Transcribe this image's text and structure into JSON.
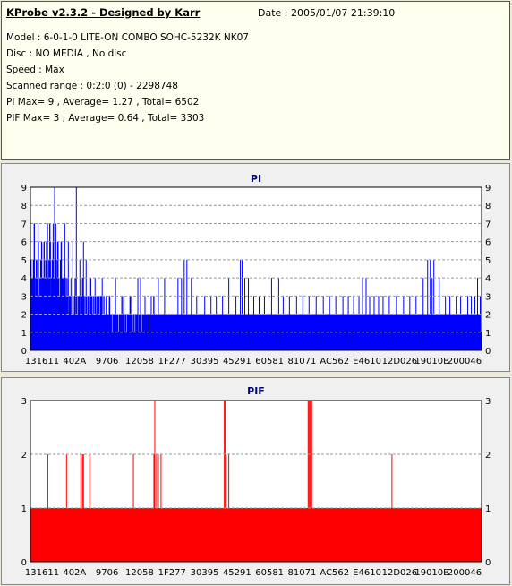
{
  "header": {
    "title": "KProbe v2.3.2 - Designed by Karr",
    "date": "Date : 2005/01/07 21:39:10",
    "lines": [
      "Model : 6-0-1-0 LITE-ON COMBO SOHC-5232K NK07",
      "Disc : NO MEDIA , No disc",
      "Speed : Max",
      "Scanned range : 0:2:0 (0) - 2298748",
      "PI Max= 9 , Average= 1.27 , Total= 6502",
      "PIF Max= 3 , Average= 0.64 , Total= 3303"
    ]
  },
  "colors": {
    "pi": "#0000ff",
    "pif": "#ff0000",
    "plot_bg": "#ffffff",
    "grid": "#999999"
  },
  "chart_data": [
    {
      "type": "bar",
      "title": "PI",
      "xlabel": "",
      "ylabel": "",
      "ylim": [
        0,
        9
      ],
      "y_ticks": [
        0,
        1,
        2,
        3,
        4,
        5,
        6,
        7,
        8,
        9
      ],
      "x_tick_labels": [
        "131611",
        "402A",
        "9706",
        "12058",
        "1F277",
        "30395",
        "45291",
        "60581",
        "81071",
        "AC562",
        "E4610",
        "12D026",
        "19010B",
        "200046"
      ],
      "grid": true,
      "values": [
        5,
        4,
        4,
        5,
        7,
        4,
        3,
        4,
        5,
        6,
        3,
        4,
        5,
        6,
        4,
        4,
        6,
        4,
        5,
        6,
        7,
        4,
        5,
        7,
        3,
        4,
        5,
        6,
        4,
        9,
        4,
        5,
        4,
        6,
        4,
        3,
        5,
        6,
        4,
        4,
        3,
        4,
        4,
        3,
        4,
        3,
        2,
        3,
        3,
        2,
        2,
        3,
        2,
        3,
        4,
        2,
        3,
        2,
        3,
        3,
        2,
        3,
        3,
        4,
        2,
        3,
        2,
        3,
        3,
        2,
        3,
        2,
        3,
        4,
        3,
        2,
        3,
        2,
        3,
        3,
        2,
        3,
        2,
        3,
        2,
        3,
        3,
        2,
        2,
        3,
        2,
        2,
        3,
        2,
        2,
        2,
        3,
        2,
        2,
        1,
        2,
        2,
        2,
        3,
        2,
        2,
        2,
        1,
        2,
        2,
        2,
        3,
        2,
        2,
        1,
        2,
        2,
        1,
        2,
        2,
        2,
        3,
        2,
        2,
        1,
        2,
        2,
        1,
        2,
        2,
        2,
        1,
        2,
        2,
        2,
        1,
        2,
        2,
        2,
        1,
        2,
        2,
        2,
        2,
        1,
        2,
        2,
        2,
        2,
        2,
        3,
        2,
        2,
        2,
        2,
        2,
        2,
        2,
        2,
        2,
        2,
        2,
        2,
        2,
        2,
        2,
        2,
        2,
        2,
        2,
        2,
        2,
        2,
        2,
        2,
        2,
        2,
        2,
        2,
        2,
        2,
        2,
        2,
        2,
        2,
        2,
        2,
        2,
        2,
        2,
        2,
        2,
        2,
        2,
        2,
        2,
        2,
        2,
        2,
        2,
        2,
        2,
        2,
        2,
        2,
        2,
        2,
        2,
        2,
        2,
        2,
        2,
        2,
        2,
        2,
        2,
        2,
        2,
        2,
        2,
        2,
        2,
        2,
        2,
        2,
        2,
        2,
        2,
        2,
        2,
        2,
        2,
        2,
        2,
        2,
        2,
        2,
        2,
        2,
        2,
        2,
        2,
        2,
        2,
        2,
        2,
        2,
        2,
        2,
        2,
        2,
        2,
        2,
        2,
        2,
        2,
        2,
        2,
        2,
        2,
        2,
        2,
        2,
        2,
        2,
        2,
        2,
        2,
        2,
        2,
        2,
        2,
        2,
        2,
        2,
        2,
        2,
        2,
        2,
        2,
        2,
        2,
        2,
        2,
        2,
        2,
        2,
        2,
        2,
        2,
        2,
        2,
        2,
        2,
        2,
        2,
        2,
        2,
        2,
        2,
        2,
        2,
        2,
        2,
        2,
        2,
        2,
        2,
        2,
        2,
        2,
        2,
        2,
        2,
        2,
        2,
        2,
        2,
        2,
        2,
        2,
        2,
        2,
        2,
        2,
        2,
        2,
        2,
        2,
        2,
        2,
        2,
        2,
        2,
        2,
        2,
        2,
        2,
        2,
        2,
        2,
        2,
        2,
        2,
        2,
        2,
        2,
        2,
        2,
        2,
        2,
        2,
        2,
        2,
        2,
        2,
        2,
        2,
        2,
        2,
        2,
        2,
        2,
        2,
        2,
        2,
        2,
        2,
        2,
        2,
        2,
        2,
        2,
        2,
        2,
        2,
        2,
        2,
        2,
        2,
        2,
        2,
        2,
        2,
        2,
        2,
        2,
        2,
        2,
        2,
        2,
        2,
        2,
        2,
        2,
        2,
        2,
        2,
        2,
        2,
        2,
        2,
        2,
        2,
        2,
        2,
        2,
        2,
        2,
        2,
        2,
        2,
        2,
        2,
        2,
        2,
        2,
        2,
        2,
        2,
        2,
        2,
        2,
        2,
        2,
        2,
        2,
        2,
        2,
        2,
        2,
        2,
        2,
        2,
        2,
        2,
        2,
        2,
        2,
        2,
        2,
        2,
        2,
        2,
        2,
        2,
        2,
        2,
        2,
        2,
        2,
        2,
        2,
        2,
        2,
        2,
        2,
        2,
        2,
        2,
        2,
        2,
        2,
        2,
        2,
        2,
        2,
        2,
        2,
        2,
        2,
        2,
        2,
        2,
        2,
        2,
        2,
        2,
        2,
        2,
        2,
        2,
        2,
        2,
        2,
        2,
        2,
        2,
        2,
        2,
        2,
        2,
        2,
        2,
        2,
        2,
        2,
        2,
        2,
        2,
        2,
        2,
        2,
        2,
        2,
        2,
        2,
        2,
        2,
        2,
        2,
        2,
        2,
        2,
        2,
        2,
        2,
        2,
        2,
        2,
        2,
        2,
        2,
        2,
        2,
        2,
        2,
        2,
        2,
        2,
        2,
        2,
        2,
        2,
        2,
        2,
        2,
        2,
        2,
        2,
        2,
        2,
        2,
        2,
        2,
        2,
        2,
        2,
        2,
        1,
        1
      ],
      "peaks": [
        [
          0,
          5
        ],
        [
          3,
          4
        ],
        [
          6,
          5
        ],
        [
          8,
          7
        ],
        [
          11,
          5
        ],
        [
          15,
          6
        ],
        [
          18,
          6
        ],
        [
          22,
          6
        ],
        [
          25,
          7
        ],
        [
          28,
          7
        ],
        [
          30,
          6
        ],
        [
          34,
          6
        ],
        [
          38,
          7
        ],
        [
          42,
          6
        ],
        [
          45,
          4
        ],
        [
          47,
          6
        ],
        [
          51,
          9
        ],
        [
          55,
          5
        ],
        [
          59,
          6
        ],
        [
          62,
          5
        ],
        [
          66,
          4
        ],
        [
          72,
          4
        ],
        [
          80,
          4
        ],
        [
          88,
          3
        ],
        [
          95,
          4
        ],
        [
          104,
          3
        ],
        [
          112,
          3
        ],
        [
          120,
          4
        ],
        [
          123,
          4
        ],
        [
          128,
          3
        ],
        [
          135,
          3
        ],
        [
          143,
          4
        ],
        [
          150,
          4
        ],
        [
          165,
          4
        ],
        [
          169,
          4
        ],
        [
          172,
          5
        ],
        [
          175,
          5
        ],
        [
          180,
          4
        ],
        [
          186,
          3
        ],
        [
          195,
          3
        ],
        [
          202,
          3
        ],
        [
          208,
          3
        ],
        [
          215,
          3
        ],
        [
          222,
          4
        ],
        [
          230,
          3
        ],
        [
          235,
          5
        ],
        [
          237,
          5
        ],
        [
          240,
          4
        ],
        [
          244,
          4
        ],
        [
          250,
          3
        ],
        [
          256,
          3
        ],
        [
          262,
          3
        ],
        [
          270,
          4
        ],
        [
          278,
          4
        ],
        [
          283,
          3
        ],
        [
          290,
          3
        ],
        [
          298,
          3
        ],
        [
          305,
          3
        ],
        [
          312,
          3
        ],
        [
          320,
          3
        ],
        [
          328,
          3
        ],
        [
          335,
          3
        ],
        [
          342,
          3
        ],
        [
          350,
          3
        ],
        [
          356,
          3
        ],
        [
          362,
          3
        ],
        [
          368,
          3
        ],
        [
          372,
          4
        ],
        [
          376,
          4
        ],
        [
          380,
          3
        ],
        [
          385,
          3
        ],
        [
          390,
          3
        ],
        [
          395,
          3
        ],
        [
          402,
          3
        ],
        [
          410,
          3
        ],
        [
          418,
          3
        ],
        [
          425,
          3
        ],
        [
          432,
          3
        ],
        [
          440,
          4
        ],
        [
          445,
          5
        ],
        [
          448,
          5
        ],
        [
          450,
          4
        ],
        [
          452,
          5
        ],
        [
          458,
          4
        ],
        [
          465,
          3
        ],
        [
          470,
          3
        ],
        [
          477,
          3
        ],
        [
          482,
          3
        ],
        [
          490,
          3
        ],
        [
          494,
          3
        ],
        [
          498,
          3
        ],
        [
          501,
          4
        ],
        [
          504,
          3
        ]
      ]
    },
    {
      "type": "bar",
      "title": "PIF",
      "xlabel": "",
      "ylabel": "",
      "ylim": [
        0,
        3
      ],
      "y_ticks": [
        0,
        1,
        2,
        3
      ],
      "x_tick_labels": [
        "131611",
        "402A",
        "9706",
        "12058",
        "1F277",
        "30395",
        "45291",
        "60581",
        "81071",
        "AC562",
        "E4610",
        "12D026",
        "19010B",
        "200046"
      ],
      "grid": true,
      "baseline": 1,
      "peaks": [
        [
          19,
          2
        ],
        [
          40,
          2
        ],
        [
          56,
          2
        ],
        [
          58,
          2
        ],
        [
          59,
          2
        ],
        [
          66,
          2
        ],
        [
          115,
          2
        ],
        [
          139,
          3
        ],
        [
          138,
          2
        ],
        [
          141,
          2
        ],
        [
          143,
          2
        ],
        [
          146,
          2
        ],
        [
          217,
          3
        ],
        [
          218,
          3
        ],
        [
          219,
          2
        ],
        [
          222,
          2
        ],
        [
          311,
          3
        ],
        [
          312,
          3
        ],
        [
          313,
          3
        ],
        [
          314,
          3
        ],
        [
          315,
          3
        ],
        [
          405,
          2
        ]
      ]
    }
  ]
}
